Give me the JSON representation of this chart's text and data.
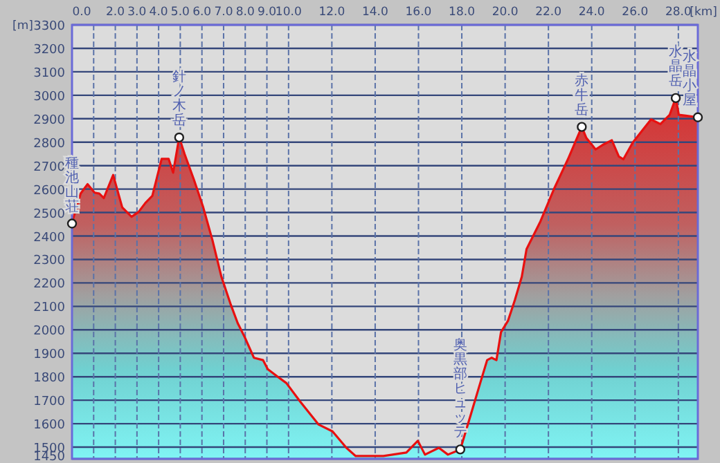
{
  "chart_data": {
    "type": "area",
    "xlabel": "[km]",
    "ylabel": "[m]",
    "x": [
      0,
      0.08,
      0.4,
      0.72,
      1.04,
      1.26,
      1.47,
      1.9,
      2.32,
      2.75,
      3.07,
      3.39,
      3.71,
      4.14,
      4.46,
      4.67,
      4.95,
      5.2,
      5.63,
      6.06,
      6.48,
      6.9,
      7.33,
      7.65,
      7.97,
      8.4,
      8.82,
      9.04,
      9.47,
      9.9,
      10.54,
      11.39,
      12.03,
      12.67,
      13.1,
      14.38,
      15.44,
      15.97,
      16.3,
      16.94,
      17.36,
      17.93,
      18.43,
      18.85,
      19.17,
      19.38,
      19.6,
      19.81,
      20.13,
      20.45,
      20.77,
      20.99,
      21.63,
      22.26,
      22.9,
      23.54,
      23.75,
      24.18,
      24.5,
      24.93,
      25.25,
      25.46,
      25.89,
      26.31,
      26.74,
      27.17,
      27.6,
      27.88,
      28.02,
      28.34,
      28.9
    ],
    "series": [
      {
        "color": "#e81010",
        "values": [
          2453,
          2482,
          2581,
          2621,
          2585,
          2581,
          2562,
          2660,
          2522,
          2482,
          2502,
          2541,
          2571,
          2729,
          2729,
          2670,
          2820,
          2749,
          2640,
          2522,
          2384,
          2226,
          2108,
          2029,
          1970,
          1881,
          1871,
          1832,
          1802,
          1773,
          1694,
          1596,
          1567,
          1497,
          1462,
          1462,
          1477,
          1527,
          1468,
          1497,
          1468,
          1490,
          1643,
          1773,
          1871,
          1881,
          1871,
          1990,
          2038,
          2127,
          2226,
          2344,
          2462,
          2601,
          2727,
          2865,
          2818,
          2769,
          2788,
          2808,
          2739,
          2727,
          2798,
          2847,
          2897,
          2877,
          2917,
          2988,
          2917,
          2913,
          2906
        ]
      }
    ],
    "annotations": [
      {
        "text": "種池山荘",
        "x": 0,
        "y": 2453
      },
      {
        "text": "針ノ木岳",
        "x": 4.95,
        "y": 2820
      },
      {
        "text": "奥黒部ヒュッテ",
        "x": 17.93,
        "y": 1490
      },
      {
        "text": "赤牛岳",
        "x": 23.54,
        "y": 2865
      },
      {
        "text": "水晶岳",
        "x": 27.88,
        "y": 2988
      },
      {
        "text": "水晶小屋",
        "x": 28.9,
        "y": 2906
      }
    ],
    "xlim": [
      0,
      28.9
    ],
    "xticks": [
      {
        "value": 0,
        "label": "0.0"
      },
      {
        "value": 1,
        "label": null
      },
      {
        "value": 2,
        "label": "2.0"
      },
      {
        "value": 3,
        "label": "3.0"
      },
      {
        "value": 4,
        "label": "4.0"
      },
      {
        "value": 5,
        "label": "5.0"
      },
      {
        "value": 6,
        "label": "6.0"
      },
      {
        "value": 7,
        "label": "7.0"
      },
      {
        "value": 8,
        "label": "8.0"
      },
      {
        "value": 9,
        "label": "9.0"
      },
      {
        "value": 10,
        "label": "10.0"
      },
      {
        "value": 12,
        "label": "12.0"
      },
      {
        "value": 14,
        "label": "14.0"
      },
      {
        "value": 16,
        "label": "16.0"
      },
      {
        "value": 18,
        "label": "18.0"
      },
      {
        "value": 20,
        "label": "20.0"
      },
      {
        "value": 22,
        "label": "22.0"
      },
      {
        "value": 24,
        "label": "24.0"
      },
      {
        "value": 26,
        "label": "26.0"
      },
      {
        "value": 28,
        "label": "28.0"
      }
    ],
    "ylim": [
      1450,
      3300
    ],
    "yticks": [
      1450,
      1500,
      1600,
      1700,
      1800,
      1900,
      2000,
      2100,
      2200,
      2300,
      2400,
      2500,
      2600,
      2700,
      2800,
      2900,
      3000,
      3100,
      3200,
      3300
    ],
    "grid": true
  }
}
